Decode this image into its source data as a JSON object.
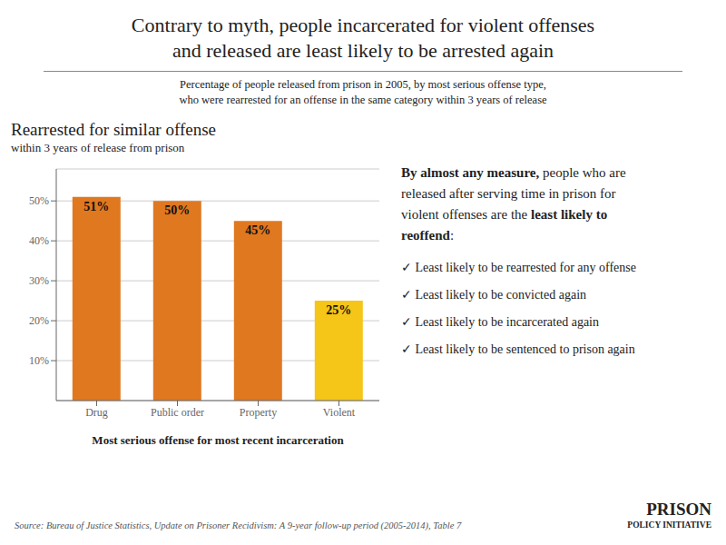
{
  "title": "Contrary to myth, people incarcerated for violent offenses\nand released are least likely to be arrested again",
  "subtitle": "Percentage of people released from prison in 2005, by most serious offense type,\nwho were rearrested for an offense in the same category within 3 years of release",
  "annotations": [
    "By almost any measure,",
    " people who are\nreleased after serving time in prison for\nviolent offenses are the ",
    "least likely to\nreoffend",
    ":"
  ],
  "bullet_points": [
    "✓ Least likely to be rearrested for any offense",
    "✓ Least likely to be convicted again",
    "✓ Least likely to be incarcerated again",
    "✓ Least likely to be sentenced to prison again"
  ],
  "source": "Source: Bureau of Justice Statistics, Update on Prisoner Recidivism: A 9-year follow-up period (2005-2014), Table 7",
  "logo": [
    "PRISON",
    "POLICY INITIATIVE"
  ],
  "chart_data": {
    "type": "bar",
    "title": "Rearrested for similar offense",
    "subtitle": "within 3 years of release from prison",
    "xlabel": "Most serious offense for most recent incarceration",
    "categories": [
      "Drug",
      "Public order",
      "Property",
      "Violent"
    ],
    "values": [
      51,
      50,
      45,
      25
    ],
    "value_labels": [
      "51%",
      "50%",
      "45%",
      "25%"
    ],
    "colors": [
      "#E07820",
      "#E07820",
      "#E07820",
      "#F5C518"
    ],
    "ylim": [
      0,
      58
    ],
    "yticks": [
      {
        "value": 10,
        "label": "10%"
      },
      {
        "value": 20,
        "label": "20%"
      },
      {
        "value": 30,
        "label": "30%"
      },
      {
        "value": 40,
        "label": "40%"
      },
      {
        "value": 50,
        "label": "50%"
      }
    ],
    "grid": true,
    "data_labels": true
  }
}
